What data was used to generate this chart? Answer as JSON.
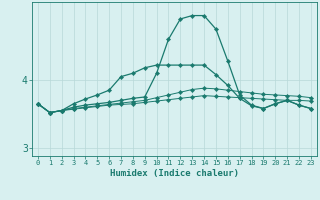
{
  "xlabel": "Humidex (Indice chaleur)",
  "x_values": [
    0,
    1,
    2,
    3,
    4,
    5,
    6,
    7,
    8,
    9,
    10,
    11,
    12,
    13,
    14,
    15,
    16,
    17,
    18,
    19,
    20,
    21,
    22,
    23
  ],
  "line_peak": [
    3.65,
    3.52,
    3.55,
    3.65,
    3.72,
    3.78,
    3.85,
    4.05,
    4.1,
    4.18,
    4.22,
    4.22,
    4.22,
    4.22,
    4.22,
    4.08,
    3.92,
    3.73,
    3.62,
    3.58,
    3.65,
    3.7,
    3.63,
    3.58
  ],
  "line_high": [
    3.65,
    3.52,
    3.55,
    3.6,
    3.63,
    3.65,
    3.67,
    3.7,
    3.73,
    3.75,
    4.1,
    4.6,
    4.9,
    4.95,
    4.95,
    4.75,
    4.28,
    3.78,
    3.63,
    3.58,
    3.65,
    3.7,
    3.63,
    3.58
  ],
  "line_mid1": [
    3.65,
    3.52,
    3.55,
    3.58,
    3.6,
    3.62,
    3.64,
    3.66,
    3.68,
    3.7,
    3.74,
    3.78,
    3.82,
    3.86,
    3.88,
    3.87,
    3.85,
    3.83,
    3.81,
    3.79,
    3.78,
    3.77,
    3.76,
    3.74
  ],
  "line_mid2": [
    3.65,
    3.52,
    3.55,
    3.57,
    3.59,
    3.61,
    3.63,
    3.64,
    3.65,
    3.67,
    3.69,
    3.71,
    3.73,
    3.75,
    3.77,
    3.76,
    3.75,
    3.74,
    3.73,
    3.72,
    3.71,
    3.7,
    3.7,
    3.69
  ],
  "line_color": "#1a7a6e",
  "bg_color": "#d8f0f0",
  "grid_color": "#b8d8d8",
  "ylim": [
    2.88,
    5.15
  ],
  "yticks": [
    3,
    4
  ],
  "marker": "D",
  "markersize": 2.2,
  "lw_main": 0.9,
  "lw_flat": 0.7
}
